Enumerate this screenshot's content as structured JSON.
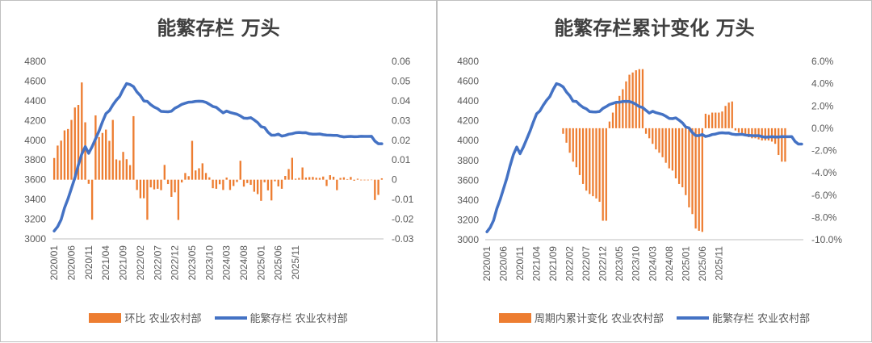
{
  "colors": {
    "bar": "#ED7D31",
    "line": "#4472C4"
  },
  "left": {
    "chart_data": {
      "type": "bar+line",
      "title": "能繁存栏 万头",
      "x_ticks": [
        "2020/01",
        "2020/06",
        "2020/11",
        "2021/04",
        "2021/09",
        "2022/02",
        "2022/07",
        "2022/12",
        "2023/05",
        "2023/10",
        "2024/03",
        "2024/08",
        "2025/01",
        "2025/06",
        "2025/11"
      ],
      "y_left": {
        "min": 3000,
        "max": 4800,
        "ticks": [
          "4800",
          "4600",
          "4400",
          "4200",
          "4000",
          "3800",
          "3600",
          "3400",
          "3200",
          "3000"
        ]
      },
      "y_right": {
        "min": -0.03,
        "max": 0.06,
        "ticks": [
          "0.06",
          "0.05",
          "0.04",
          "0.03",
          "0.02",
          "0.01",
          "0",
          "-0.01",
          "-0.02",
          "-0.03"
        ]
      },
      "series": [
        {
          "name": "环比 农业农村部",
          "type": "bar",
          "axis": "right",
          "values": [
            0.011,
            0.0173,
            0.0198,
            0.025,
            0.0257,
            0.0303,
            0.0366,
            0.0379,
            0.0493,
            0.0291,
            -0.0021,
            -0.0203,
            0.0326,
            0.0216,
            0.0237,
            0.0254,
            0.0197,
            0.0303,
            0.0103,
            0.0098,
            0.0141,
            0.0104,
            0.0074,
            0.0322,
            -0.0052,
            -0.0094,
            -0.0094,
            -0.0203,
            -0.0039,
            -0.0049,
            -0.0046,
            -0.0053,
            0.0075,
            -0.0022,
            -0.0087,
            -0.0064,
            -0.0204,
            -0.0014,
            0.0034,
            0.0018,
            0.0197,
            0.0047,
            0.0058,
            0.0083,
            0.0034,
            0.0012,
            -0.0043,
            -0.0046,
            -0.0023,
            -0.0052,
            0.0011,
            -0.0052,
            -0.0032,
            -0.0012,
            0.0096,
            -0.0035,
            -0.0017,
            -0.0026,
            -0.0061,
            -0.0073,
            -0.0107,
            -0.0013,
            -0.0054,
            -0.0105,
            -0.0008,
            -0.0034,
            -0.0046,
            0.0019,
            0.0054,
            0.0111,
            0.0005,
            0.0009,
            0.0062,
            0.0011,
            0.0013,
            0.0014,
            0.001,
            0.0009,
            0.0016,
            -0.0032,
            0.0023,
            0.0015,
            -0.0053,
            0.0009,
            0.0012,
            0.0003,
            0.0014,
            -0.0005,
            0.0005,
            -0.0003,
            -0.0003,
            -0.0003,
            -0.0002,
            -0.0103,
            -0.0077,
            0.0007
          ]
        },
        {
          "name": "能繁存栏 农业农村部",
          "type": "line",
          "axis": "left",
          "values": [
            3080,
            3124,
            3195,
            3314,
            3406,
            3513,
            3621,
            3748,
            3860,
            3935,
            3868,
            3935,
            4015,
            4095,
            4186,
            4270,
            4300,
            4357,
            4406,
            4445,
            4516,
            4575,
            4564,
            4543,
            4490,
            4452,
            4398,
            4394,
            4361,
            4336,
            4320,
            4293,
            4290,
            4289,
            4294,
            4325,
            4343,
            4364,
            4375,
            4386,
            4388,
            4394,
            4396,
            4394,
            4384,
            4365,
            4343,
            4334,
            4305,
            4278,
            4296,
            4282,
            4273,
            4264,
            4246,
            4224,
            4222,
            4229,
            4206,
            4179,
            4138,
            4128,
            4082,
            4051,
            4051,
            4062,
            4042,
            4049,
            4061,
            4066,
            4076,
            4079,
            4076,
            4077,
            4065,
            4061,
            4062,
            4064,
            4056,
            4052,
            4051,
            4050,
            4050,
            4040,
            4034,
            4037,
            4039,
            4036,
            4037,
            4040,
            4039,
            4039,
            4040,
            3992,
            3965,
            3965
          ]
        }
      ]
    }
  },
  "right": {
    "chart_data": {
      "type": "bar+line",
      "title": "能繁存栏累计变化 万头",
      "x_ticks": [
        "2020/01",
        "2020/06",
        "2020/11",
        "2021/04",
        "2021/09",
        "2022/02",
        "2022/07",
        "2022/12",
        "2023/05",
        "2023/10",
        "2024/03",
        "2024/08",
        "2025/01",
        "2025/06",
        "2025/11"
      ],
      "y_left": {
        "min": 3000,
        "max": 4800,
        "ticks": [
          "4800",
          "4600",
          "4400",
          "4200",
          "4000",
          "3800",
          "3600",
          "3400",
          "3200",
          "3000"
        ]
      },
      "y_right": {
        "min": -0.1,
        "max": 0.06,
        "ticks": [
          "6.0%",
          "4.0%",
          "2.0%",
          "0.0%",
          "-2.0%",
          "-4.0%",
          "-6.0%",
          "-8.0%",
          "-10.0%"
        ]
      },
      "series": [
        {
          "name": "周期内累计变化 农业农村部",
          "type": "bar",
          "axis": "right",
          "start_index": 23,
          "values": [
            -0.005,
            -0.013,
            -0.022,
            -0.03,
            -0.035,
            -0.042,
            -0.05,
            -0.056,
            -0.059,
            -0.061,
            -0.063,
            -0.066,
            -0.083,
            -0.083,
            0.006,
            0.014,
            0.022,
            0.029,
            0.035,
            0.042,
            0.048,
            0.05,
            0.052,
            0.053,
            0.053,
            -0.005,
            -0.009,
            -0.014,
            -0.019,
            -0.022,
            -0.026,
            -0.031,
            -0.036,
            -0.038,
            -0.045,
            -0.05,
            -0.053,
            -0.06,
            -0.071,
            -0.077,
            -0.09,
            -0.092,
            -0.093,
            0.013,
            0.012,
            0.014,
            0.014,
            0.014,
            0.015,
            0.02,
            0.023,
            0.024,
            -0.002,
            -0.004,
            -0.006,
            -0.007,
            -0.008,
            -0.009,
            -0.009,
            -0.01,
            -0.011,
            -0.011,
            -0.011,
            -0.012,
            -0.014,
            -0.024,
            -0.03,
            -0.03
          ]
        },
        {
          "name": "能繁存栏 农业农村部",
          "type": "line",
          "axis": "left",
          "values": [
            3080,
            3124,
            3195,
            3314,
            3406,
            3513,
            3621,
            3748,
            3860,
            3935,
            3868,
            3935,
            4015,
            4095,
            4186,
            4270,
            4300,
            4357,
            4406,
            4445,
            4516,
            4575,
            4564,
            4543,
            4490,
            4452,
            4398,
            4394,
            4361,
            4336,
            4320,
            4293,
            4290,
            4289,
            4294,
            4325,
            4343,
            4364,
            4375,
            4386,
            4388,
            4394,
            4396,
            4394,
            4384,
            4365,
            4343,
            4334,
            4305,
            4278,
            4296,
            4282,
            4273,
            4264,
            4246,
            4224,
            4222,
            4229,
            4206,
            4179,
            4138,
            4128,
            4082,
            4051,
            4051,
            4062,
            4042,
            4049,
            4061,
            4066,
            4076,
            4079,
            4076,
            4077,
            4065,
            4061,
            4062,
            4064,
            4056,
            4052,
            4051,
            4050,
            4050,
            4040,
            4034,
            4037,
            4039,
            4036,
            4037,
            4040,
            4039,
            4039,
            4040,
            3992,
            3965,
            3965
          ]
        }
      ]
    }
  }
}
